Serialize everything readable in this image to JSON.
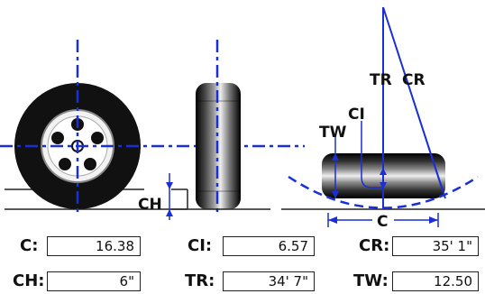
{
  "diagram": {
    "labels": {
      "ch": "CH",
      "tw": "TW",
      "ci": "CI",
      "tr": "TR",
      "cr": "CR",
      "c": "C"
    },
    "colors": {
      "axis": "#1a2fd6",
      "ground": "#222222",
      "tire": "#111111"
    }
  },
  "fields": [
    {
      "label": "C:",
      "value": "16.38"
    },
    {
      "label": "CI:",
      "value": "6.57"
    },
    {
      "label": "CR:",
      "value": "35' 1\""
    },
    {
      "label": "CH:",
      "value": "6\""
    },
    {
      "label": "TR:",
      "value": "34' 7\""
    },
    {
      "label": "TW:",
      "value": "12.50"
    }
  ]
}
